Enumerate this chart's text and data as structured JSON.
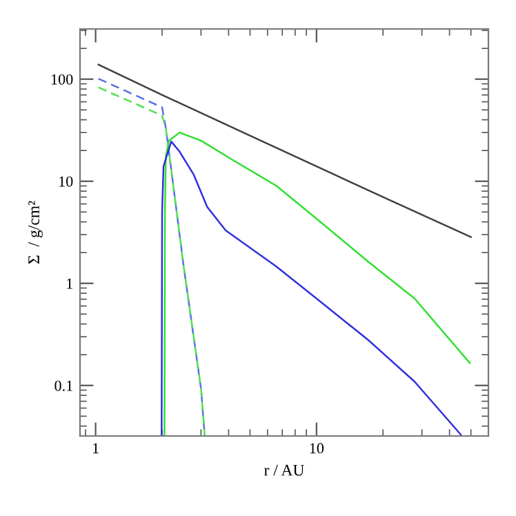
{
  "chart_data": {
    "type": "line",
    "xlabel": "r / AU",
    "ylabel": "Σ  / g/cm²",
    "log": "xy",
    "grid": false,
    "xlim": [
      0.85,
      60
    ],
    "ylim": [
      0.032,
      310
    ],
    "xticks": [
      1,
      10
    ],
    "yticks": [
      0.1,
      1,
      10,
      100
    ],
    "series": [
      {
        "color": "#404040",
        "line_style": "solid",
        "x": [
          1.03,
          2,
          5,
          10,
          20,
          50
        ],
        "values": [
          139,
          70,
          28,
          14,
          7,
          2.84
        ]
      },
      {
        "color": "#5a6ee8",
        "line_style": "dashed",
        "x": [
          1.03,
          2.0,
          2.08,
          2.2,
          2.5,
          3.0,
          3.12
        ],
        "values": [
          101,
          53,
          33,
          13,
          1.5,
          0.093,
          0.032
        ]
      },
      {
        "color": "#50e050",
        "line_style": "dashed",
        "x": [
          1.03,
          2.0,
          2.08,
          2.2,
          2.5,
          3.0,
          3.12
        ],
        "values": [
          83,
          44,
          33,
          13,
          1.5,
          0.093,
          0.032
        ]
      },
      {
        "color": "#30e030",
        "line_style": "solid",
        "x": [
          2.05,
          2.06,
          2.08,
          2.15,
          2.4,
          3.0,
          4.07,
          6.59,
          10,
          17.2,
          27.8,
          49.4
        ],
        "values": [
          0.032,
          5,
          17.6,
          25,
          30,
          25,
          16.7,
          9.0,
          4.3,
          1.62,
          0.71,
          0.166
        ]
      },
      {
        "color": "#3030e0",
        "line_style": "solid",
        "x": [
          1.99,
          2.0,
          2.03,
          2.08,
          2.2,
          2.4,
          2.78,
          3.2,
          3.88,
          6.59,
          10,
          17.2,
          27.8,
          45
        ],
        "values": [
          0.032,
          5,
          14,
          16.7,
          24.5,
          19.5,
          11.6,
          5.6,
          3.3,
          1.46,
          0.71,
          0.277,
          0.109,
          0.033
        ]
      }
    ]
  }
}
